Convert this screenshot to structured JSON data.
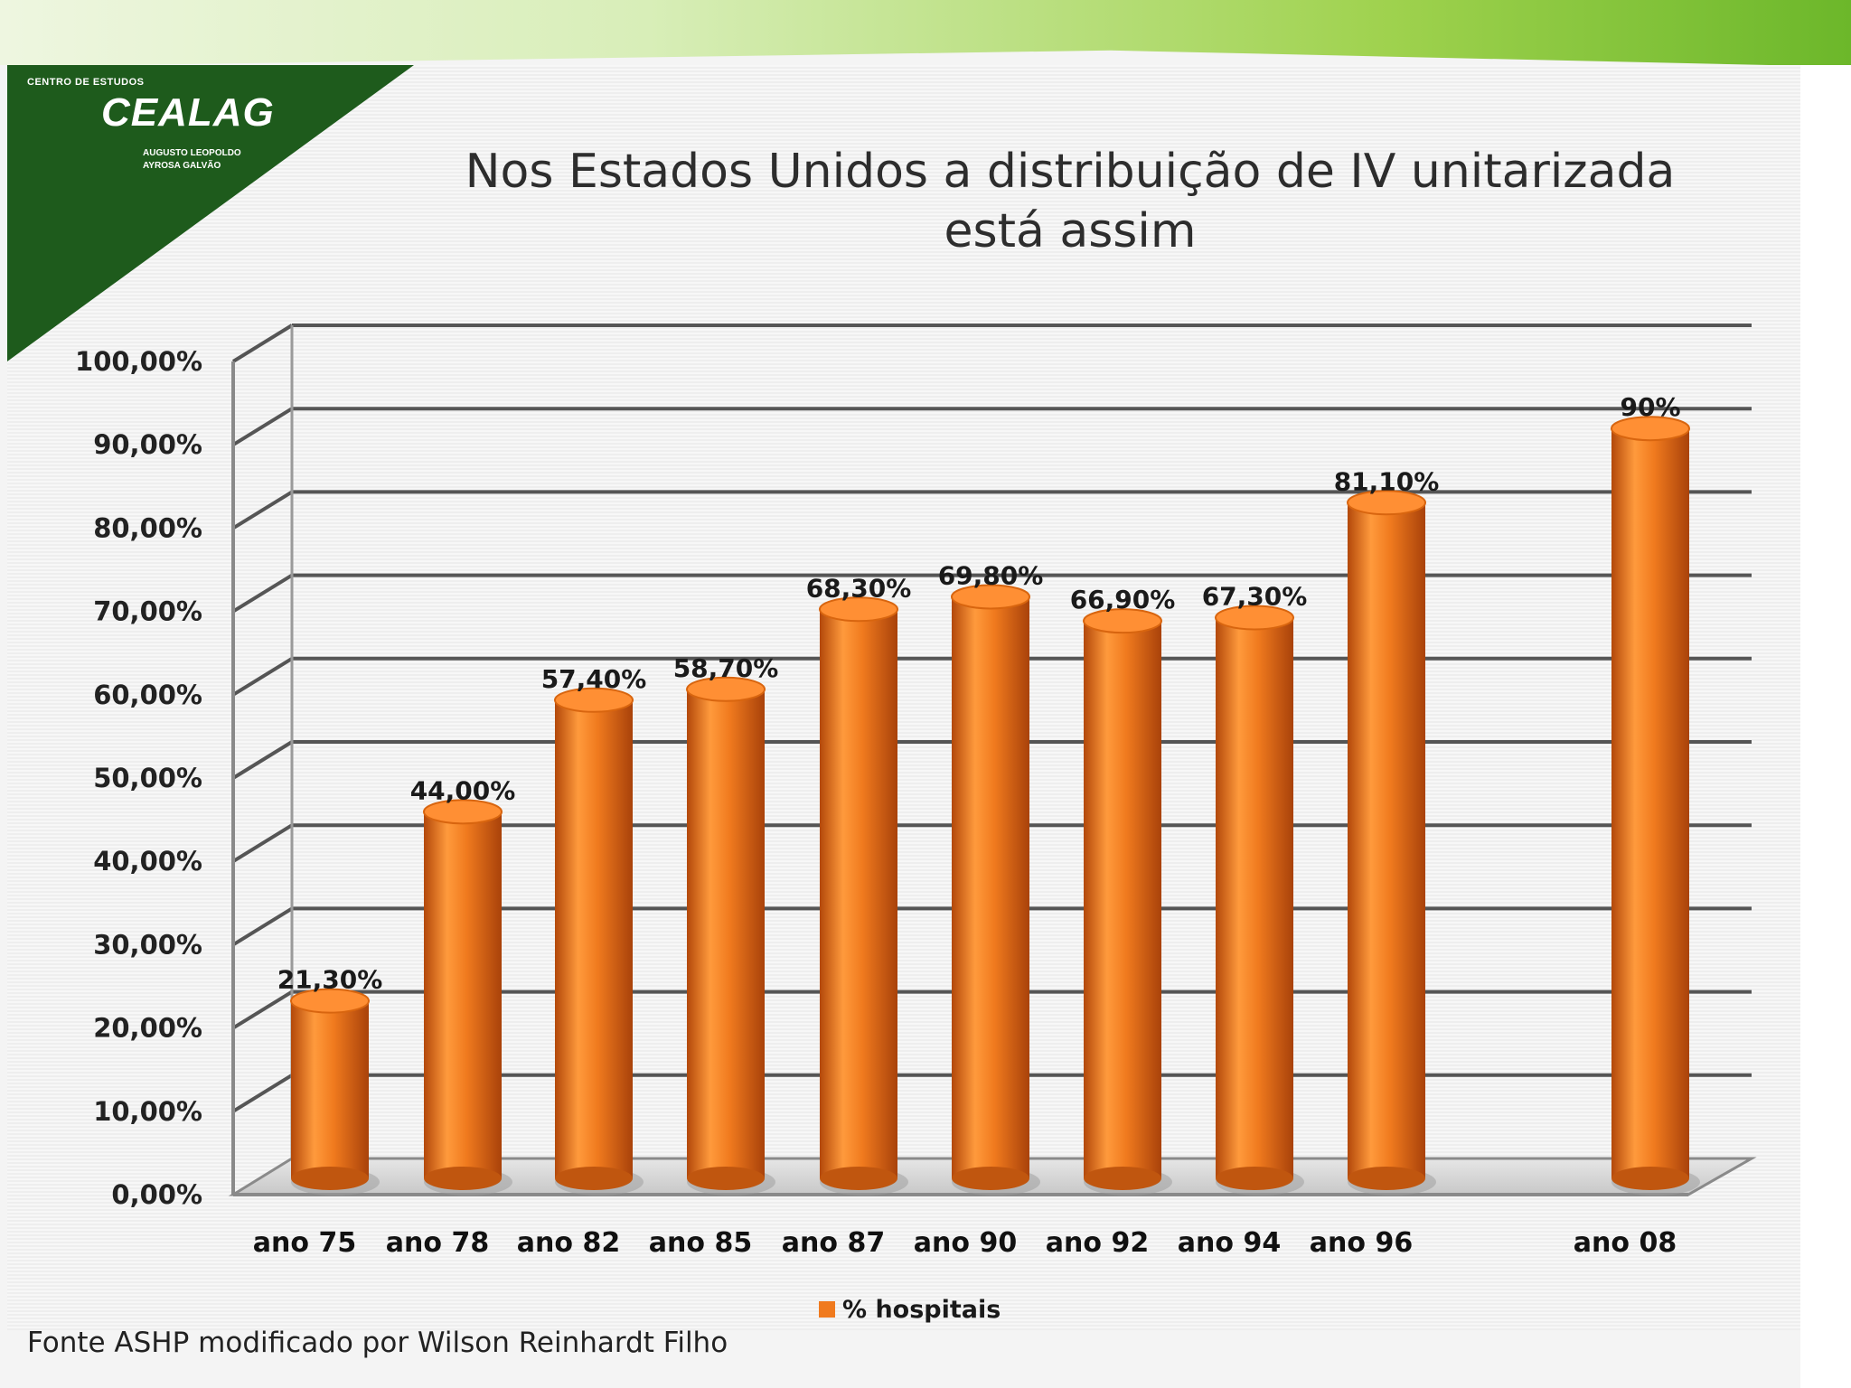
{
  "logo": {
    "top_text": "CENTRO DE ESTUDOS",
    "name": "CEALAG",
    "bottom_text_1": "AUGUSTO LEOPOLDO",
    "bottom_text_2": "AYROSA GALVÃO"
  },
  "slide": {
    "title_line1": "Nos Estados Unidos a distribuição de IV unitarizada",
    "title_line2": "está assim",
    "source": "Fonte ASHP modificado por Wilson Reinhardt Filho"
  },
  "colors": {
    "bar": "#f07a1e",
    "bar_dark": "#b3480a",
    "bar_light": "#ffb26b",
    "logo_green": "#1e5b1c",
    "gridline": "#555555"
  },
  "chart_data": {
    "type": "bar",
    "title": "Nos Estados Unidos a distribuição de IV unitarizada está assim",
    "xlabel": "",
    "ylabel": "",
    "ylim": [
      0,
      100
    ],
    "grid": true,
    "legend_position": "bottom",
    "y_ticks": [
      "0,00%",
      "10,00%",
      "20,00%",
      "30,00%",
      "40,00%",
      "50,00%",
      "60,00%",
      "70,00%",
      "80,00%",
      "90,00%",
      "100,00%"
    ],
    "categories": [
      "ano 75",
      "ano 78",
      "ano 82",
      "ano 85",
      "ano 87",
      "ano 90",
      "ano 92",
      "ano 94",
      "ano 96",
      "ano 08"
    ],
    "series": [
      {
        "name": "% hospitais",
        "values": [
          21.3,
          44.0,
          57.4,
          58.7,
          68.3,
          69.8,
          66.9,
          67.3,
          81.1,
          90.0
        ],
        "labels": [
          "21,30%",
          "44,00%",
          "57,40%",
          "58,70%",
          "68,30%",
          "69,80%",
          "66,90%",
          "67,30%",
          "81,10%",
          "90%"
        ]
      }
    ]
  }
}
